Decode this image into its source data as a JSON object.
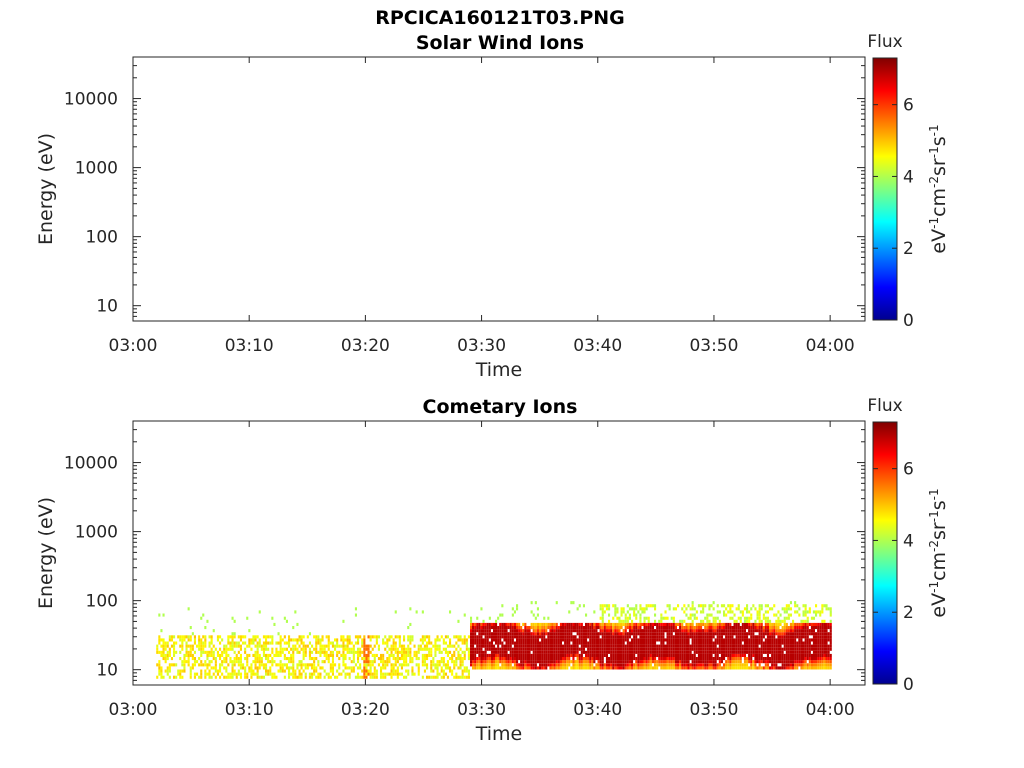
{
  "figure": {
    "title": "RPCICA160121T03.PNG"
  },
  "chart_data": [
    {
      "type": "heatmap",
      "title": "Solar Wind Ions",
      "xlabel": "Time",
      "ylabel": "Energy (eV)",
      "x_ticks": [
        "03:00",
        "03:10",
        "03:20",
        "03:30",
        "03:40",
        "03:50",
        "04:00"
      ],
      "y_ticks": [
        "10",
        "100",
        "1000",
        "10000"
      ],
      "y_scale": "log",
      "ylim": [
        6,
        40000
      ],
      "xlim": [
        "03:00",
        "04:03"
      ],
      "colorbar": {
        "label": "Flux",
        "unit": "eV-1cm-2sr-1s-1",
        "ticks": [
          "0",
          "2",
          "4",
          "6"
        ],
        "range": [
          0,
          7.3
        ]
      },
      "data": []
    },
    {
      "type": "heatmap",
      "title": "Cometary Ions",
      "xlabel": "Time",
      "ylabel": "Energy (eV)",
      "x_ticks": [
        "03:00",
        "03:10",
        "03:20",
        "03:30",
        "03:40",
        "03:50",
        "04:00"
      ],
      "y_ticks": [
        "10",
        "100",
        "1000",
        "10000"
      ],
      "y_scale": "log",
      "ylim": [
        6,
        40000
      ],
      "xlim": [
        "03:00",
        "04:03"
      ],
      "colorbar": {
        "label": "Flux",
        "unit": "eV-1cm-2sr-1s-1",
        "ticks": [
          "0",
          "2",
          "4",
          "6"
        ],
        "range": [
          0,
          7.3
        ]
      },
      "regions": [
        {
          "t_start": "03:02",
          "t_end": "03:29",
          "e_low": 7,
          "e_high": 30,
          "flux_typical": 4.6,
          "scatter_up_to_ev": 80
        },
        {
          "t_start": "03:29",
          "t_end": "04:00",
          "e_low": 10,
          "e_high": 45,
          "flux_typical": 5.4,
          "core_ev": 22,
          "core_flux": 6.3
        }
      ]
    }
  ]
}
